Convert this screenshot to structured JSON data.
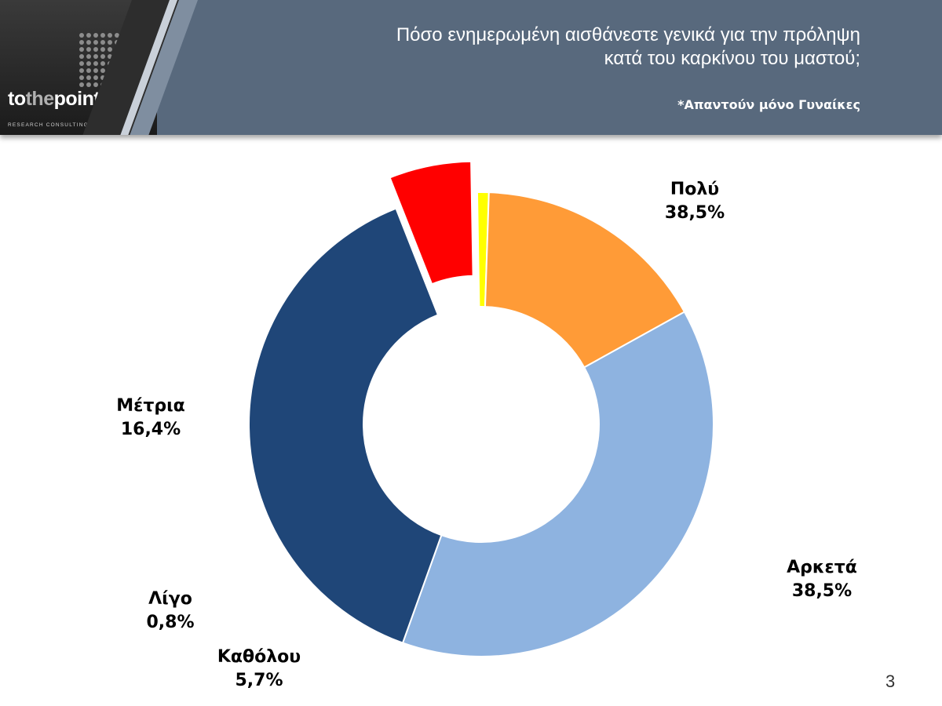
{
  "header": {
    "logo": {
      "brand_part1": "to",
      "brand_part2": "the",
      "brand_part3": "point",
      "tagline": "RESEARCH CONSULTING COMMUNICATION"
    },
    "title_line1": "Πόσο ενημερωμένη αισθάνεστε γενικά για την πρόληψη",
    "title_line2": "κατά του καρκίνου του μαστού;",
    "subtitle": "*Απαντούν μόνο Γυναίκες"
  },
  "page_number": "3",
  "chart_data": {
    "type": "pie",
    "donut": true,
    "slices": [
      {
        "label": "Πολύ",
        "value": 38.5,
        "value_label": "38,5%",
        "color": "#8eb3e0"
      },
      {
        "label": "Αρκετά",
        "value": 38.5,
        "value_label": "38,5%",
        "color": "#1f4678"
      },
      {
        "label": "Καθόλου",
        "value": 5.7,
        "value_label": "5,7%",
        "color": "#ff0000",
        "exploded": true
      },
      {
        "label": "Λίγο",
        "value": 0.8,
        "value_label": "0,8%",
        "color": "#ffff00"
      },
      {
        "label": "Μέτρια",
        "value": 16.4,
        "value_label": "16,4%",
        "color": "#ff9b37"
      }
    ]
  }
}
